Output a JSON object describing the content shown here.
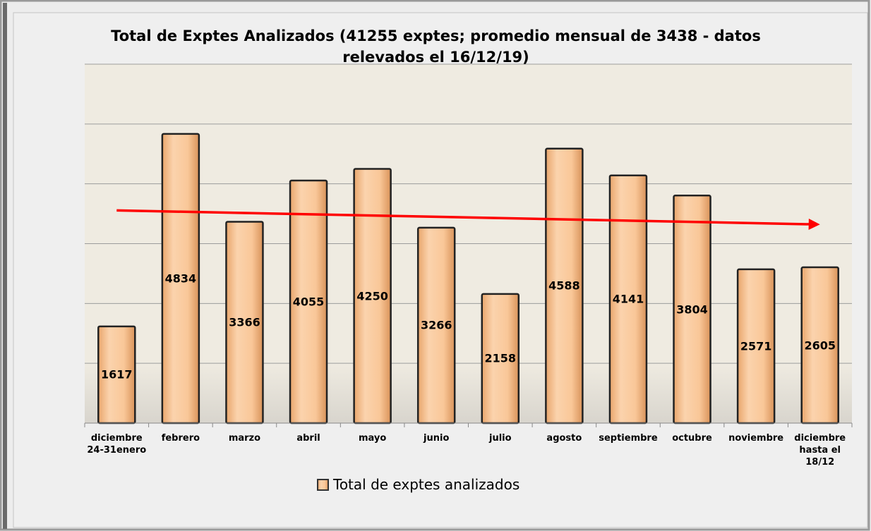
{
  "chart_data": {
    "type": "bar",
    "title": "Total de Exptes Analizados  (41255 exptes; promedio mensual de 3438 - datos relevados el 16/12/19)",
    "categories": [
      "diciembre 24-31enero",
      "febrero",
      "marzo",
      "abril",
      "mayo",
      "junio",
      "julio",
      "agosto",
      "septiembre",
      "octubre",
      "noviembre",
      "diciembre hasta el 18/12"
    ],
    "series": [
      {
        "name": "Total de exptes analizados",
        "color": "#f9c798",
        "values": [
          1617,
          4834,
          3366,
          4055,
          4250,
          3266,
          2158,
          4588,
          4141,
          3804,
          2571,
          2605
        ]
      }
    ],
    "ylim": [
      0,
      6000
    ],
    "yticks": [
      0,
      1000,
      2000,
      3000,
      4000,
      5000,
      6000
    ],
    "grid": true,
    "trendline": {
      "type": "linear",
      "color": "#ff0000"
    }
  }
}
